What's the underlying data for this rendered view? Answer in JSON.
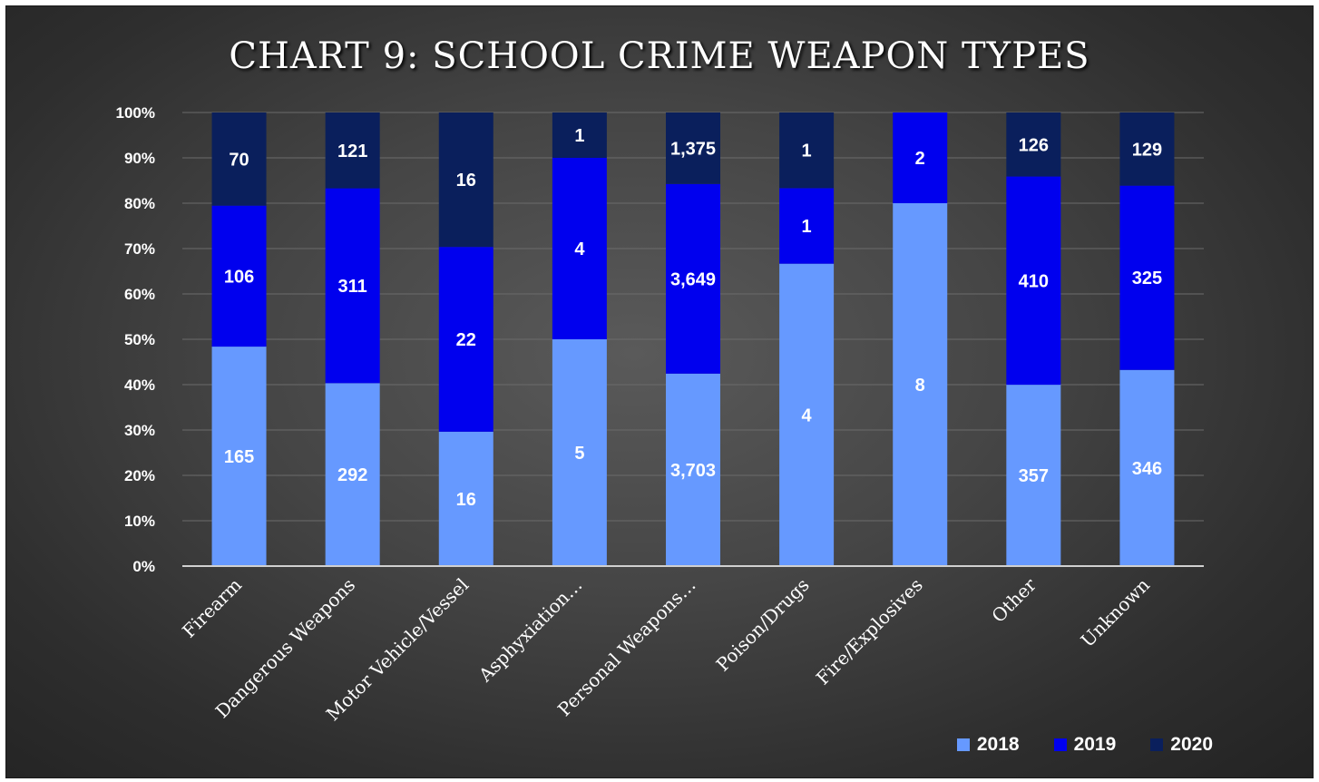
{
  "chart_data": {
    "type": "bar",
    "stacked": "percent",
    "title": "CHART 9: SCHOOL CRIME WEAPON TYPES",
    "categories": [
      "Firearm",
      "Dangerous Weapons",
      "Motor Vehicle/Vessel",
      "Asphyxiation…",
      "Personal Weapons…",
      "Poison/Drugs",
      "Fire/Explosives",
      "Other",
      "Unknown"
    ],
    "series": [
      {
        "name": "2018",
        "color": "#6699ff",
        "values": [
          165,
          292,
          16,
          5,
          3703,
          4,
          8,
          357,
          346
        ],
        "labels": [
          "165",
          "292",
          "16",
          "5",
          "3,703",
          "4",
          "8",
          "357",
          "346"
        ]
      },
      {
        "name": "2019",
        "color": "#0000ee",
        "values": [
          106,
          311,
          22,
          4,
          3649,
          1,
          2,
          410,
          325
        ],
        "labels": [
          "106",
          "311",
          "22",
          "4",
          "3,649",
          "1",
          "2",
          "410",
          "325"
        ]
      },
      {
        "name": "2020",
        "color": "#0a1f5c",
        "values": [
          70,
          121,
          16,
          1,
          1375,
          1,
          0,
          126,
          129
        ],
        "labels": [
          "70",
          "121",
          "16",
          "1",
          "1,375",
          "1",
          "",
          "126",
          "129"
        ]
      }
    ],
    "yticks": [
      "0%",
      "10%",
      "20%",
      "30%",
      "40%",
      "50%",
      "60%",
      "70%",
      "80%",
      "90%",
      "100%"
    ],
    "ylim": [
      0,
      100
    ],
    "grid": true,
    "legend_position": "bottom-right"
  }
}
